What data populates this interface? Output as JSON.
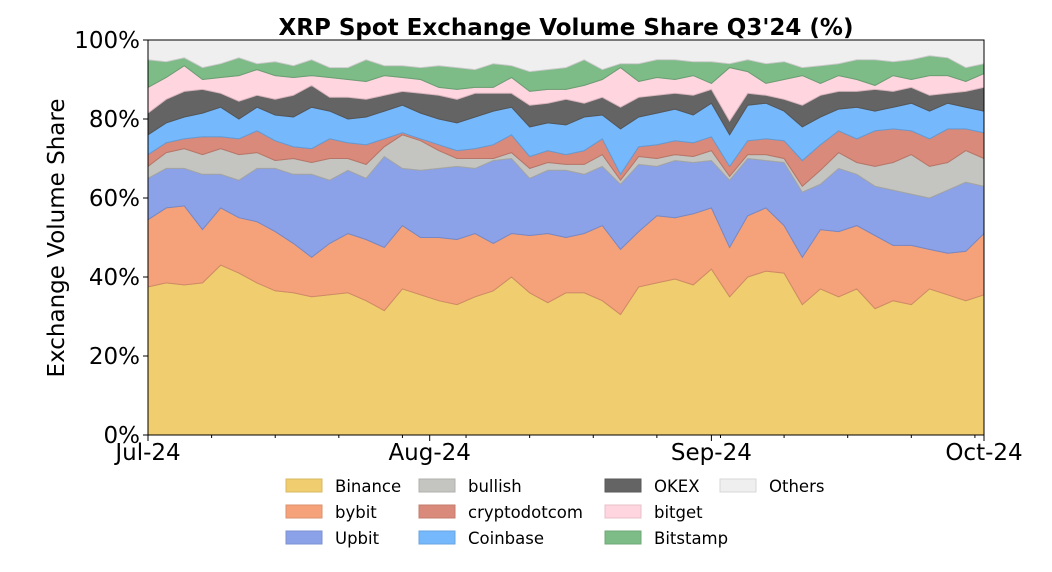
{
  "chart_data": {
    "type": "area",
    "stacked": true,
    "title": "XRP Spot Exchange Volume Share Q3'24 (%)",
    "xlabel": "",
    "ylabel": "Exchange Volume Share",
    "ylim": [
      0,
      100
    ],
    "yticks": [
      "0%",
      "20%",
      "40%",
      "60%",
      "80%",
      "100%"
    ],
    "ytick_values": [
      0,
      20,
      40,
      60,
      80,
      100
    ],
    "xticks": [
      "Jul-24",
      "Aug-24",
      "Sep-24",
      "Oct-24"
    ],
    "xtick_dates": [
      "2024-07-01",
      "2024-08-01",
      "2024-09-01",
      "2024-10-01"
    ],
    "minor_xtick_dates": [
      "2024-07-08",
      "2024-07-15",
      "2024-07-22",
      "2024-07-29",
      "2024-08-05",
      "2024-08-12",
      "2024-08-19",
      "2024-08-26",
      "2024-09-02",
      "2024-09-09",
      "2024-09-16",
      "2024-09-23",
      "2024-09-30"
    ],
    "xlim": [
      "2024-07-01",
      "2024-10-01"
    ],
    "grid": false,
    "legend_position": "bottom",
    "x": [
      "2024-07-01",
      "2024-07-03",
      "2024-07-05",
      "2024-07-07",
      "2024-07-09",
      "2024-07-11",
      "2024-07-13",
      "2024-07-15",
      "2024-07-17",
      "2024-07-19",
      "2024-07-21",
      "2024-07-23",
      "2024-07-25",
      "2024-07-27",
      "2024-07-29",
      "2024-07-31",
      "2024-08-02",
      "2024-08-04",
      "2024-08-06",
      "2024-08-08",
      "2024-08-10",
      "2024-08-12",
      "2024-08-14",
      "2024-08-16",
      "2024-08-18",
      "2024-08-20",
      "2024-08-22",
      "2024-08-24",
      "2024-08-26",
      "2024-08-28",
      "2024-08-30",
      "2024-09-01",
      "2024-09-03",
      "2024-09-05",
      "2024-09-07",
      "2024-09-09",
      "2024-09-11",
      "2024-09-13",
      "2024-09-15",
      "2024-09-17",
      "2024-09-19",
      "2024-09-21",
      "2024-09-23",
      "2024-09-25",
      "2024-09-27",
      "2024-09-29",
      "2024-10-01"
    ],
    "series": [
      {
        "name": "Binance",
        "color": "#f0cd6e",
        "values": [
          37.5,
          38.5,
          38,
          38.5,
          43,
          41,
          38.5,
          36.5,
          36,
          35,
          35.5,
          36,
          34,
          31.5,
          37,
          35.5,
          34,
          33,
          35,
          36.5,
          40,
          36,
          33.5,
          36,
          36,
          34,
          30.5,
          37.5,
          38.5,
          39.5,
          38,
          42,
          35,
          40,
          41.5,
          41,
          33,
          37,
          35,
          37,
          32,
          34,
          33,
          37,
          35.5,
          34,
          35.5
        ]
      },
      {
        "name": "bybit",
        "color": "#f5a27a",
        "values": [
          17,
          19,
          20,
          13.5,
          14.5,
          14,
          15.5,
          15,
          12.5,
          10,
          13,
          15,
          15.5,
          16,
          16,
          14.5,
          16,
          16.5,
          16,
          12,
          11,
          14.5,
          17.5,
          14,
          15,
          19,
          16.5,
          14,
          17,
          15.5,
          18,
          15.5,
          12.5,
          15.5,
          16,
          12,
          12,
          15,
          16.5,
          16,
          18.5,
          14,
          15,
          10,
          10.5,
          12.5,
          15.5
        ]
      },
      {
        "name": "Upbit",
        "color": "#8ca2e8",
        "values": [
          10.5,
          10,
          9.5,
          14,
          8.5,
          9.5,
          13.5,
          16,
          17.5,
          21,
          16,
          16,
          15.5,
          23,
          14.5,
          17,
          17.5,
          18.5,
          16.5,
          21,
          19,
          14.5,
          16,
          17,
          15,
          15,
          16.5,
          17,
          12.5,
          14.5,
          13,
          12,
          17,
          14.5,
          12,
          16,
          16.5,
          11.5,
          16,
          13,
          12.5,
          14,
          13,
          13,
          16,
          17.5,
          12
        ]
      },
      {
        "name": "bullish",
        "color": "#c4c4c0",
        "values": [
          3,
          4,
          5,
          5,
          6.5,
          6.5,
          4,
          2,
          4,
          3,
          5.5,
          3,
          3.5,
          2.5,
          8.5,
          7.5,
          4.5,
          2,
          2.5,
          0.5,
          1.5,
          2.5,
          2,
          1.5,
          2.5,
          3,
          1,
          2,
          2,
          1.5,
          1.5,
          2.5,
          1,
          1,
          1.5,
          1,
          1.5,
          3.5,
          4,
          3,
          5,
          7,
          10,
          8,
          7,
          8,
          7
        ]
      },
      {
        "name": "cryptodotcom",
        "color": "#d98a7a",
        "values": [
          3,
          2.5,
          2.5,
          4.5,
          3,
          4,
          5.5,
          5,
          3,
          3.5,
          5,
          4,
          5,
          2,
          0.5,
          0.5,
          1.5,
          2,
          2.5,
          3.5,
          4.5,
          3,
          3,
          2.5,
          3.5,
          4,
          1.5,
          2.5,
          3.5,
          3.5,
          3.5,
          3.5,
          2.5,
          3.5,
          4,
          4.5,
          6.5,
          6.5,
          5.5,
          6,
          9,
          8.5,
          6,
          7,
          8.5,
          5.5,
          6.5
        ]
      },
      {
        "name": "Coinbase",
        "color": "#75b8fc",
        "values": [
          5,
          5,
          5.5,
          6,
          7.5,
          5,
          6,
          6.5,
          7.5,
          10.5,
          7,
          6,
          7,
          7,
          7,
          6.5,
          6.5,
          7,
          8,
          8.5,
          7,
          7.5,
          7,
          7.5,
          8.5,
          6,
          11.5,
          7.5,
          8,
          8,
          7,
          8.5,
          8,
          9,
          9,
          7.5,
          8.5,
          7,
          5.5,
          8,
          5,
          5.5,
          7,
          7,
          6.5,
          5.5,
          5.5
        ]
      },
      {
        "name": "OKEX",
        "color": "#646464",
        "values": [
          5.5,
          6,
          6.5,
          6,
          3.5,
          4.5,
          3,
          4,
          5.5,
          5.5,
          3.5,
          5.5,
          4.5,
          4,
          3.5,
          5,
          6,
          6,
          6,
          4.5,
          3.5,
          5.5,
          5,
          6.5,
          3.5,
          4.5,
          5.5,
          5,
          4.5,
          4,
          5,
          3.5,
          3.5,
          3,
          2,
          3,
          5.5,
          5.5,
          4.5,
          4,
          5.5,
          4,
          4,
          4,
          2.5,
          4,
          6
        ]
      },
      {
        "name": "bitget",
        "color": "#ffd6e0",
        "values": [
          6.5,
          5.5,
          6.5,
          2.5,
          4,
          6.5,
          6.5,
          6,
          4.5,
          2.5,
          5,
          4.5,
          4.5,
          5,
          3.5,
          3.5,
          2,
          2.5,
          1.5,
          1.5,
          4,
          3.5,
          3.5,
          2.5,
          4.5,
          4.5,
          10,
          4,
          4.5,
          3.5,
          5,
          1.5,
          13.5,
          5.5,
          3,
          5,
          7.5,
          3,
          4,
          3,
          1,
          4,
          2,
          5,
          4.5,
          2.5,
          3.5
        ]
      },
      {
        "name": "Bitstamp",
        "color": "#7dbb87",
        "values": [
          7,
          4,
          2,
          3,
          3.5,
          4.5,
          1.5,
          3.5,
          3,
          4,
          2.5,
          3,
          5.5,
          2.5,
          3,
          3,
          5.5,
          5.5,
          4.5,
          6,
          3,
          5,
          5,
          5.5,
          6.5,
          2.5,
          1,
          4.5,
          4.5,
          5,
          3.5,
          5.5,
          1,
          3,
          5,
          4.5,
          2,
          4.5,
          3,
          5,
          6.5,
          3.5,
          5,
          5,
          4.5,
          3.5,
          2.5
        ]
      },
      {
        "name": "Others",
        "color": "#efefef",
        "values": [
          5,
          5.5,
          4.5,
          7,
          6,
          4.5,
          6,
          5.5,
          6.5,
          5,
          7,
          7,
          5,
          6.5,
          6.5,
          7,
          6.5,
          7,
          7.5,
          6,
          6.5,
          8,
          7.5,
          7,
          5,
          7.5,
          6,
          6,
          5,
          5,
          5.5,
          5.5,
          6,
          5,
          6,
          5.5,
          7,
          6.5,
          6,
          5,
          5,
          5.5,
          5,
          4,
          4.5,
          7,
          6
        ]
      }
    ]
  }
}
